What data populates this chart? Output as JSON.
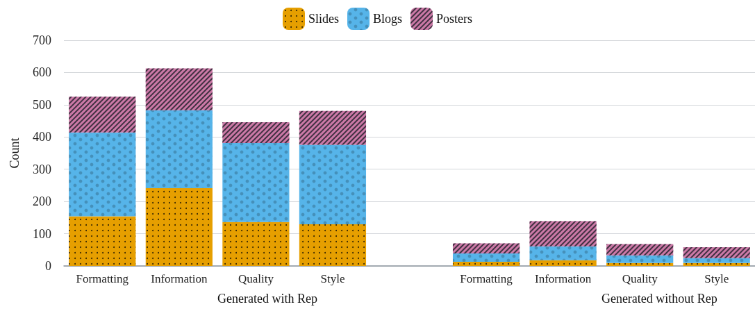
{
  "chart_data": {
    "type": "bar",
    "stacked": true,
    "ylabel": "Count",
    "categories": [
      "Formatting",
      "Information",
      "Quality",
      "Style",
      null,
      "Formatting",
      "Information",
      "Quality",
      "Style"
    ],
    "series": [
      {
        "name": "Slides",
        "color": "#e69f00",
        "values": [
          154,
          241,
          136,
          129,
          null,
          13,
          18,
          9,
          9
        ]
      },
      {
        "name": "Blogs",
        "color": "#56b4e9",
        "values": [
          260,
          242,
          245,
          247,
          null,
          26,
          43,
          24,
          15
        ]
      },
      {
        "name": "Posters",
        "color": "#cc79a7",
        "values": [
          111,
          130,
          65,
          105,
          null,
          31,
          78,
          35,
          34
        ]
      }
    ],
    "ylim": [
      0,
      700
    ],
    "yticks": [
      0,
      100,
      200,
      300,
      400,
      500,
      600,
      700
    ],
    "grid": "y",
    "legend": "top",
    "annotations": [
      "Generated with Rep",
      "Generated without Rep"
    ]
  }
}
